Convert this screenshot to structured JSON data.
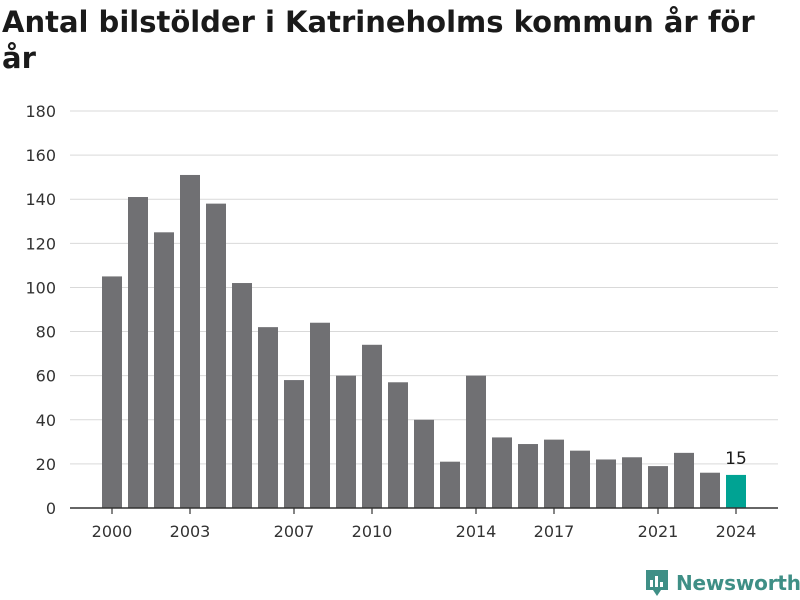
{
  "title": "Antal bilstölder i Katrineholms kommun år för år",
  "brand": {
    "name": "Newsworthy",
    "icon": "bar-chart-tag-icon"
  },
  "colors": {
    "bar": "#707073",
    "highlight": "#00a393",
    "grid": "#d9d9d9",
    "brand": "#3f8f86"
  },
  "chart_data": {
    "type": "bar",
    "categories": [
      "2000",
      "2001",
      "2002",
      "2003",
      "2004",
      "2005",
      "2006",
      "2007",
      "2008",
      "2009",
      "2010",
      "2011",
      "2012",
      "2013",
      "2014",
      "2015",
      "2016",
      "2017",
      "2018",
      "2019",
      "2020",
      "2021",
      "2022",
      "2023",
      "2024"
    ],
    "values": [
      105,
      141,
      125,
      151,
      138,
      102,
      82,
      58,
      84,
      60,
      74,
      57,
      40,
      21,
      60,
      32,
      29,
      31,
      26,
      22,
      23,
      19,
      25,
      16,
      15
    ],
    "x_tick_labels": [
      "2000",
      "2003",
      "2007",
      "2010",
      "2014",
      "2017",
      "2021",
      "2024"
    ],
    "y_ticks": [
      0,
      20,
      40,
      60,
      80,
      100,
      120,
      140,
      160,
      180
    ],
    "ylim": [
      0,
      180
    ],
    "highlight": {
      "category": "2024",
      "label": "15"
    },
    "grid": true,
    "legend": "none"
  }
}
